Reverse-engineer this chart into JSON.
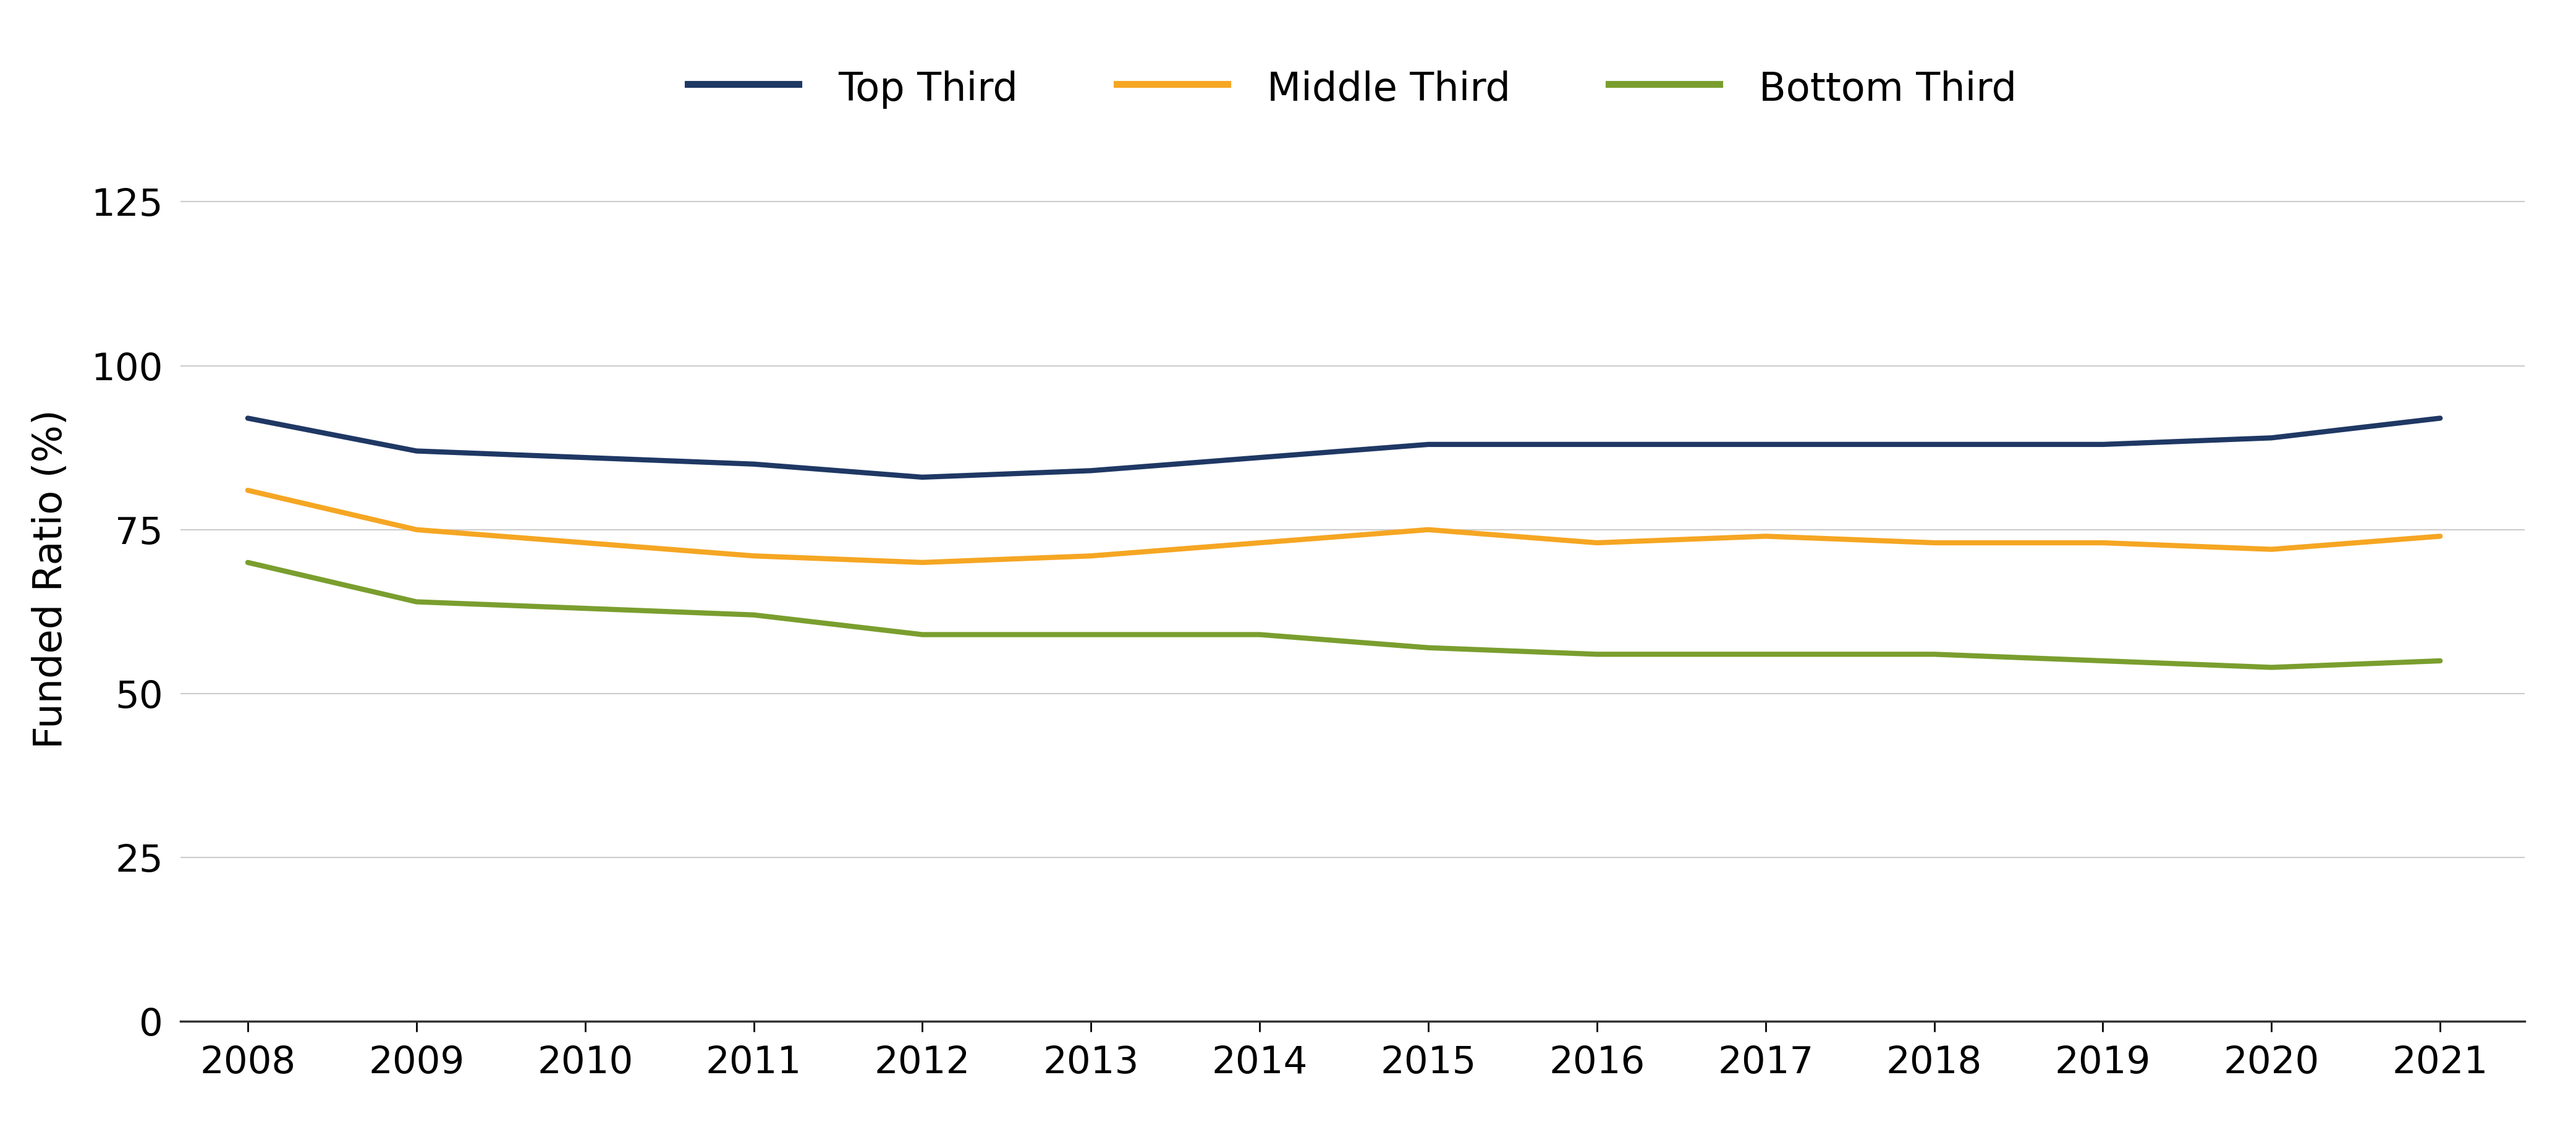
{
  "years": [
    2008,
    2009,
    2010,
    2011,
    2012,
    2013,
    2014,
    2015,
    2016,
    2017,
    2018,
    2019,
    2020,
    2021
  ],
  "top_third": [
    92,
    87,
    86,
    85,
    83,
    84,
    86,
    88,
    88,
    88,
    88,
    88,
    89,
    92
  ],
  "middle_third": [
    81,
    75,
    73,
    71,
    70,
    71,
    73,
    75,
    73,
    74,
    73,
    73,
    72,
    74
  ],
  "bottom_third": [
    70,
    64,
    63,
    62,
    59,
    59,
    59,
    57,
    56,
    56,
    56,
    55,
    54,
    55
  ],
  "top_color": "#1f3864",
  "middle_color": "#f5a623",
  "bottom_color": "#7a9e2e",
  "top_label": "Top Third",
  "middle_label": "Middle Third",
  "bottom_label": "Bottom Third",
  "ylabel": "Funded Ratio (%)",
  "ylim": [
    0,
    135
  ],
  "yticks": [
    0,
    25,
    50,
    75,
    100,
    125
  ],
  "line_width": 6.0,
  "legend_fontsize": 46,
  "tick_fontsize": 44,
  "ylabel_fontsize": 46,
  "grid_color": "#cccccc",
  "background_color": "#ffffff"
}
